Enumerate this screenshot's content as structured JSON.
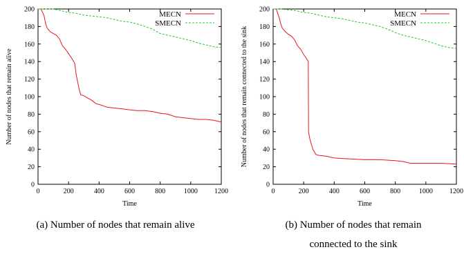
{
  "chart_data": [
    {
      "type": "line",
      "xlabel": "Time",
      "ylabel": "Number of nodes that remain alive",
      "xlim": [
        0,
        1200
      ],
      "ylim": [
        0,
        200
      ],
      "xticks": [
        "0",
        "200",
        "400",
        "600",
        "800",
        "1000",
        "1200"
      ],
      "yticks": [
        "0",
        "20",
        "40",
        "60",
        "80",
        "100",
        "120",
        "140",
        "160",
        "180",
        "200"
      ],
      "legend_position": "top-right",
      "caption": "(a) Number of nodes that remain alive",
      "series": [
        {
          "name": "MECN",
          "color": "#e8141c",
          "dash": "solid",
          "x": [
            0,
            20,
            40,
            50,
            60,
            80,
            100,
            120,
            140,
            160,
            180,
            200,
            220,
            240,
            250,
            270,
            280,
            300,
            320,
            350,
            380,
            400,
            420,
            450,
            500,
            550,
            600,
            650,
            700,
            750,
            800,
            850,
            900,
            950,
            1000,
            1050,
            1100,
            1150,
            1200
          ],
          "y": [
            200,
            200,
            192,
            183,
            178,
            174,
            172,
            170,
            166,
            158,
            154,
            149,
            144,
            138,
            125,
            108,
            102,
            101,
            99,
            96,
            92,
            91,
            90,
            88,
            87,
            86,
            85,
            84,
            84,
            83,
            81,
            80,
            77,
            76,
            75,
            74,
            74,
            73,
            71
          ]
        },
        {
          "name": "SMECN",
          "color": "#1fcc2a",
          "dash": "dashed",
          "x": [
            0,
            50,
            100,
            150,
            200,
            250,
            300,
            350,
            400,
            450,
            500,
            550,
            600,
            650,
            700,
            750,
            800,
            850,
            900,
            950,
            1000,
            1050,
            1100,
            1150,
            1200
          ],
          "y": [
            200,
            200,
            200,
            198,
            196,
            195,
            193,
            192,
            191,
            190,
            188,
            186,
            185,
            183,
            180,
            177,
            172,
            170,
            168,
            166,
            164,
            161,
            159,
            157,
            156
          ]
        }
      ]
    },
    {
      "type": "line",
      "xlabel": "Time",
      "ylabel": "Number of nodes that remain connected to the sink",
      "xlim": [
        0,
        1200
      ],
      "ylim": [
        0,
        200
      ],
      "xticks": [
        "0",
        "200",
        "400",
        "600",
        "800",
        "1000",
        "1200"
      ],
      "yticks": [
        "0",
        "20",
        "40",
        "60",
        "80",
        "100",
        "120",
        "140",
        "160",
        "180",
        "200"
      ],
      "legend_position": "top-right",
      "caption_lines": [
        "(b) Number of nodes that remain",
        "connected to the sink"
      ],
      "series": [
        {
          "name": "MECN",
          "color": "#e8141c",
          "dash": "solid",
          "x": [
            0,
            20,
            40,
            50,
            60,
            80,
            100,
            120,
            140,
            160,
            180,
            200,
            220,
            230,
            232,
            240,
            260,
            280,
            300,
            350,
            400,
            500,
            600,
            700,
            800,
            850,
            900,
            1000,
            1100,
            1200
          ],
          "y": [
            200,
            200,
            190,
            183,
            178,
            174,
            171,
            169,
            165,
            158,
            154,
            148,
            143,
            140,
            60,
            52,
            40,
            34,
            33,
            32,
            30,
            29,
            28,
            28,
            27,
            26,
            24,
            24,
            24,
            23
          ]
        },
        {
          "name": "SMECN",
          "color": "#1fcc2a",
          "dash": "dashed",
          "x": [
            0,
            50,
            100,
            150,
            200,
            250,
            300,
            350,
            400,
            450,
            500,
            550,
            600,
            650,
            700,
            750,
            800,
            850,
            900,
            950,
            1000,
            1050,
            1100,
            1150,
            1200
          ],
          "y": [
            200,
            200,
            199,
            198,
            196,
            195,
            193,
            191,
            190,
            189,
            187,
            185,
            184,
            182,
            180,
            177,
            173,
            170,
            168,
            166,
            164,
            161,
            158,
            156,
            155
          ]
        }
      ]
    }
  ]
}
